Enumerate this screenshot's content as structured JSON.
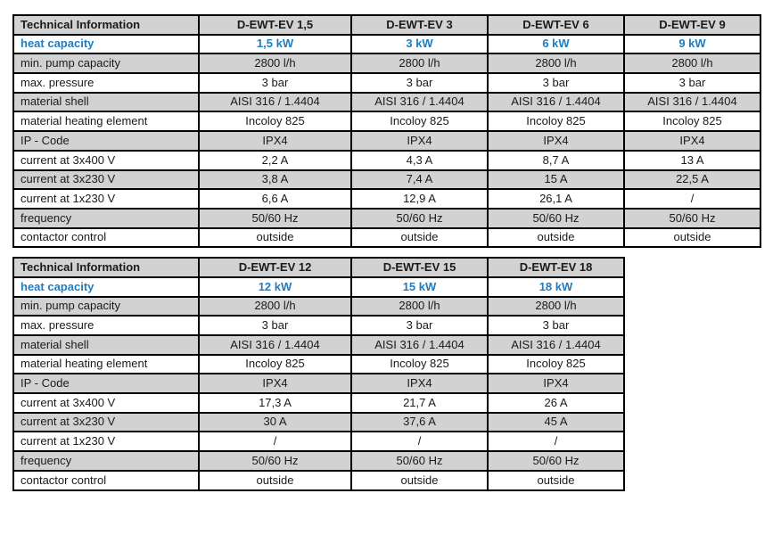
{
  "colors": {
    "accent_blue": "#1E7CC0",
    "row_gray": "#D2D2D2",
    "border_black": "#000000",
    "text_dark": "#1A1A1A"
  },
  "tables": [
    {
      "header": [
        "Technical Information",
        "D-EWT-EV 1,5",
        "D-EWT-EV 3",
        "D-EWT-EV 6",
        "D-EWT-EV 9"
      ],
      "rows": [
        {
          "label": "heat capacity",
          "values": [
            "1,5 kW",
            "3 kW",
            "6 kW",
            "9 kW"
          ],
          "highlight": true
        },
        {
          "label": "min. pump capacity",
          "values": [
            "2800 l/h",
            "2800 l/h",
            "2800 l/h",
            "2800 l/h"
          ],
          "highlight": false
        },
        {
          "label": "max. pressure",
          "values": [
            "3 bar",
            "3 bar",
            "3 bar",
            "3 bar"
          ],
          "highlight": false
        },
        {
          "label": "material shell",
          "values": [
            "AISI 316 / 1.4404",
            "AISI 316 / 1.4404",
            "AISI 316 / 1.4404",
            "AISI 316 / 1.4404"
          ],
          "highlight": false
        },
        {
          "label": "material heating element",
          "values": [
            "Incoloy 825",
            "Incoloy 825",
            "Incoloy 825",
            "Incoloy 825"
          ],
          "highlight": false
        },
        {
          "label": "IP - Code",
          "values": [
            "IPX4",
            "IPX4",
            "IPX4",
            "IPX4"
          ],
          "highlight": false
        },
        {
          "label": "current at 3x400 V",
          "values": [
            "2,2 A",
            "4,3 A",
            "8,7 A",
            "13 A"
          ],
          "highlight": false
        },
        {
          "label": "current at 3x230 V",
          "values": [
            "3,8 A",
            "7,4 A",
            "15 A",
            "22,5 A"
          ],
          "highlight": false
        },
        {
          "label": "current at 1x230 V",
          "values": [
            "6,6 A",
            "12,9 A",
            "26,1 A",
            "/"
          ],
          "highlight": false
        },
        {
          "label": "frequency",
          "values": [
            "50/60 Hz",
            "50/60 Hz",
            "50/60 Hz",
            "50/60 Hz"
          ],
          "highlight": false
        },
        {
          "label": "contactor control",
          "values": [
            "outside",
            "outside",
            "outside",
            "outside"
          ],
          "highlight": false
        }
      ]
    },
    {
      "header": [
        "Technical Information",
        "D-EWT-EV 12",
        "D-EWT-EV 15",
        "D-EWT-EV 18"
      ],
      "rows": [
        {
          "label": "heat capacity",
          "values": [
            "12 kW",
            "15 kW",
            "18 kW"
          ],
          "highlight": true
        },
        {
          "label": "min. pump capacity",
          "values": [
            "2800 l/h",
            "2800 l/h",
            "2800 l/h"
          ],
          "highlight": false
        },
        {
          "label": "max. pressure",
          "values": [
            "3 bar",
            "3 bar",
            "3 bar"
          ],
          "highlight": false
        },
        {
          "label": "material shell",
          "values": [
            "AISI 316 / 1.4404",
            "AISI 316 / 1.4404",
            "AISI 316 / 1.4404"
          ],
          "highlight": false
        },
        {
          "label": "material heating element",
          "values": [
            "Incoloy 825",
            "Incoloy 825",
            "Incoloy 825"
          ],
          "highlight": false
        },
        {
          "label": "IP - Code",
          "values": [
            "IPX4",
            "IPX4",
            "IPX4"
          ],
          "highlight": false
        },
        {
          "label": "current at 3x400 V",
          "values": [
            "17,3 A",
            "21,7 A",
            "26 A"
          ],
          "highlight": false
        },
        {
          "label": "current at 3x230 V",
          "values": [
            "30 A",
            "37,6 A",
            "45 A"
          ],
          "highlight": false
        },
        {
          "label": "current at 1x230 V",
          "values": [
            "/",
            "/",
            "/"
          ],
          "highlight": false
        },
        {
          "label": "frequency",
          "values": [
            "50/60 Hz",
            "50/60 Hz",
            "50/60 Hz"
          ],
          "highlight": false
        },
        {
          "label": "contactor control",
          "values": [
            "outside",
            "outside",
            "outside"
          ],
          "highlight": false
        }
      ]
    }
  ]
}
